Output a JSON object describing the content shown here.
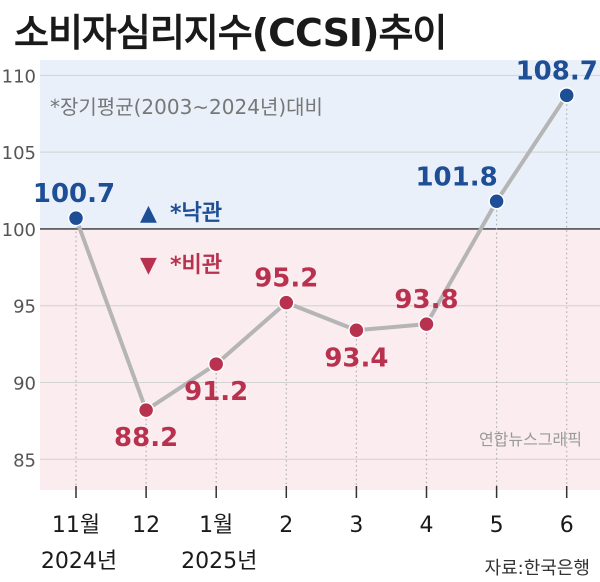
{
  "title": "소비자심리지수(CCSI)추이",
  "chart_data": {
    "type": "line",
    "categories": [
      "11월",
      "12",
      "1월",
      "2",
      "3",
      "4",
      "5",
      "6"
    ],
    "category_years": [
      "2024년",
      "",
      "2025년",
      "",
      "",
      "",
      "",
      ""
    ],
    "values": [
      100.7,
      88.2,
      91.2,
      95.2,
      93.4,
      93.8,
      101.8,
      108.7
    ],
    "value_labels": [
      "100.7",
      "88.2",
      "91.2",
      "95.2",
      "93.4",
      "93.8",
      "101.8",
      "108.7"
    ],
    "yticks": [
      "85",
      "90",
      "95",
      "100",
      "105",
      "110"
    ],
    "ylim": [
      83,
      111
    ],
    "baseline": 100,
    "note": "*장기평균(2003~2024년)대비",
    "legend": [
      {
        "symbol": "▲",
        "label": "*낙관",
        "color": "#1d4e96"
      },
      {
        "symbol": "▼",
        "label": "*비관",
        "color": "#b8324f"
      }
    ],
    "colors": {
      "above": "#1d4e96",
      "below": "#b8324f",
      "line": "#b5b5b5",
      "bg_above": "#eaf0fa",
      "bg_below": "#fbecef"
    },
    "credit": "연합뉴스그래픽",
    "source": "자료:한국은행"
  }
}
